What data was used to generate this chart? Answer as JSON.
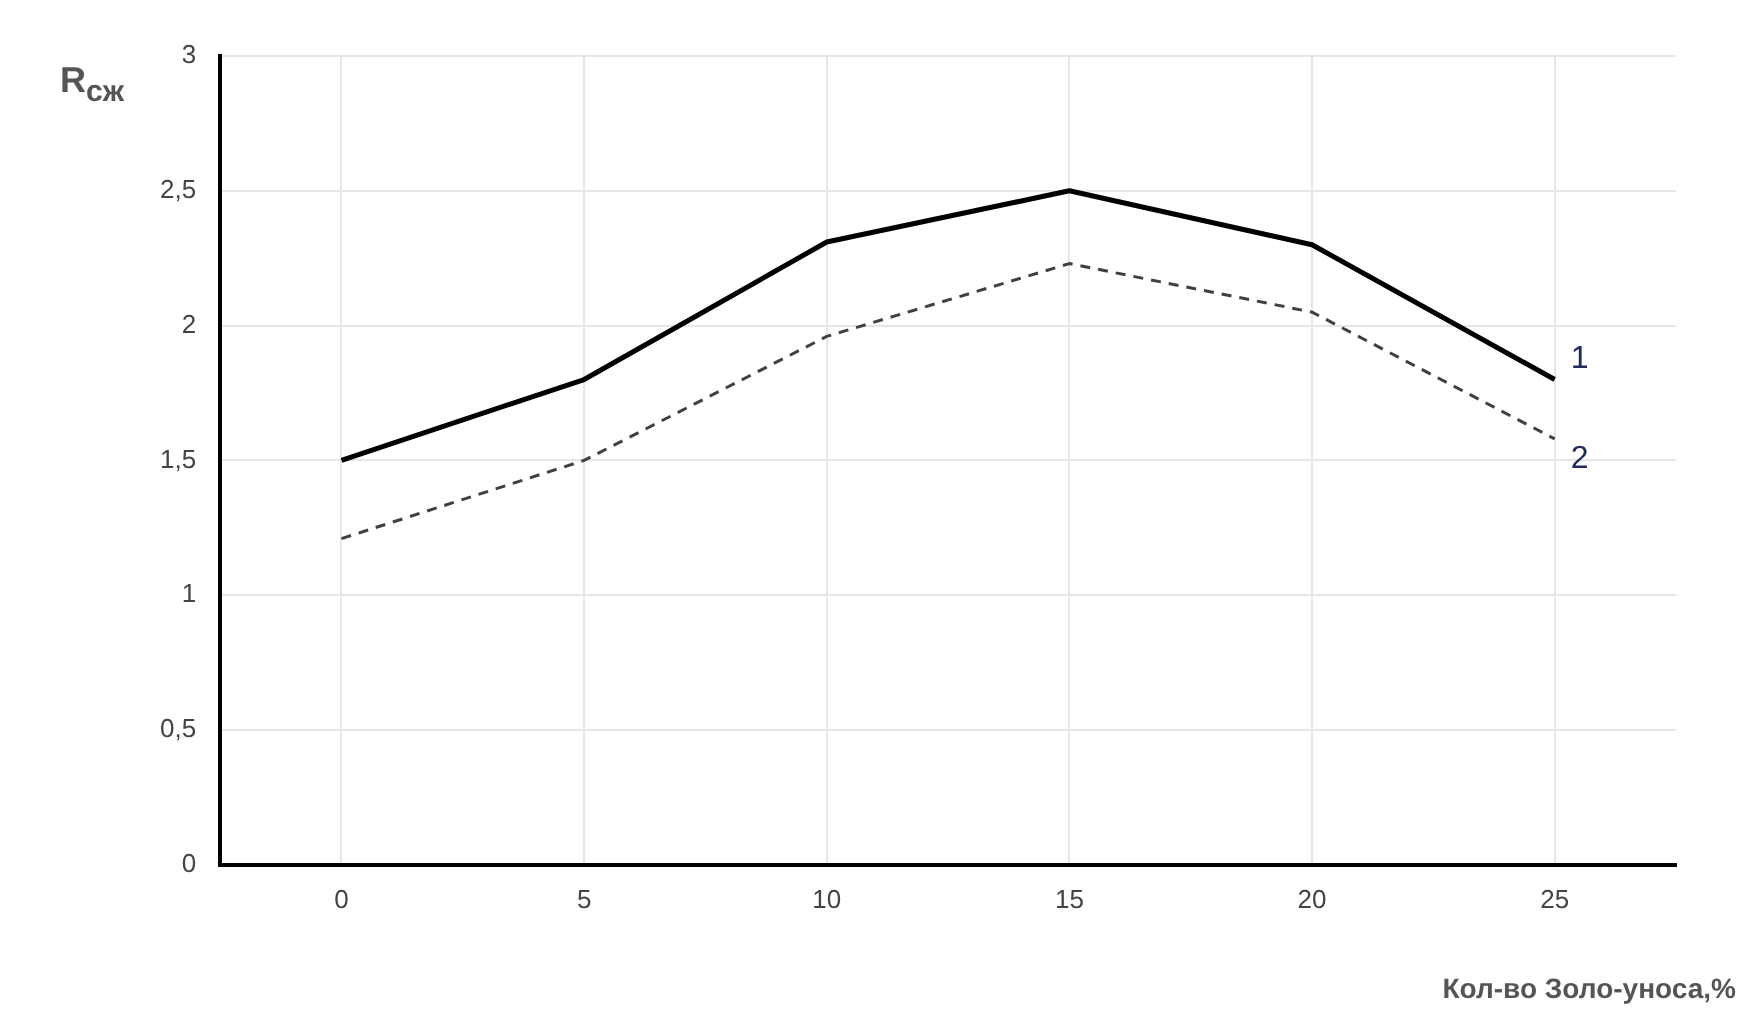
{
  "chart_data": {
    "type": "line",
    "xlabel": "Кол-во Золо-уноса,%",
    "ylabel": "R$_{сж}$",
    "categories": [
      "0",
      "5",
      "10",
      "15",
      "20",
      "25"
    ],
    "series": [
      {
        "name": "1",
        "color": "#000000",
        "line_style": "solid",
        "values": [
          1.5,
          1.8,
          2.31,
          2.5,
          2.3,
          1.8
        ]
      },
      {
        "name": "2",
        "color": "#404040",
        "line_style": "dashed",
        "values": [
          1.21,
          1.5,
          1.96,
          2.23,
          2.05,
          1.58
        ]
      }
    ],
    "ylim": [
      0,
      3
    ],
    "yticks": [
      0,
      {
        "value": 0.5,
        "label": "0,5"
      },
      1,
      {
        "value": 1.5,
        "label": "1,5"
      },
      2,
      {
        "value": 2.5,
        "label": "2,5"
      },
      3
    ],
    "grid": true,
    "legend": false,
    "marker": "none"
  }
}
